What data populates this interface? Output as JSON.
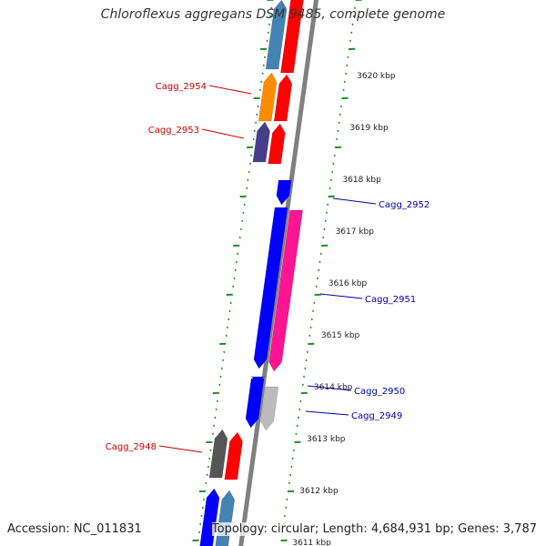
{
  "title": "Chloroflexus aggregans DSM 9485, complete genome",
  "footer": {
    "accession": "Accession: NC_011831",
    "summary": "Topology: circular; Length: 4,684,931 bp; Genes: 3,787"
  },
  "colors": {
    "backbone": "#808080",
    "ticks": "#228b22",
    "reverse_label": "#cc0000",
    "forward_label": "#0000aa"
  },
  "ruler": {
    "kbp_labels": [
      "3620 kbp",
      "3619 kbp",
      "3618 kbp",
      "3617 kbp",
      "3616 kbp",
      "3615 kbp",
      "3614 kbp",
      "3613 kbp",
      "3612 kbp",
      "3611 kbp"
    ]
  },
  "genes": {
    "reverse_strand": [
      {
        "label": "",
        "color": "#4682b4",
        "kind": "inner"
      },
      {
        "label": "",
        "color": "#ff0000",
        "kind": "outer"
      },
      {
        "label": "Cagg_2954",
        "color": "#ff8c00",
        "kind": "inner"
      },
      {
        "label": "",
        "color": "#ff0000",
        "kind": "outer"
      },
      {
        "label": "Cagg_2953",
        "color": "#483d8b",
        "kind": "inner"
      },
      {
        "label": "",
        "color": "#ff0000",
        "kind": "outer"
      },
      {
        "label": "Cagg_2948",
        "color": "#555555",
        "kind": "inner"
      },
      {
        "label": "",
        "color": "#ff0000",
        "kind": "outer"
      },
      {
        "label": "",
        "color": "#0000ff",
        "kind": "inner"
      },
      {
        "label": "",
        "color": "#4682b4",
        "kind": "outer"
      }
    ],
    "forward_strand": [
      {
        "label": "Cagg_2952",
        "color": "#0000ff",
        "kind": "inner"
      },
      {
        "label": "",
        "color": "#0000ff",
        "kind": "inner"
      },
      {
        "label": "Cagg_2951",
        "color": "#ff1493",
        "kind": "outer"
      },
      {
        "label": "",
        "color": "#0000ff",
        "kind": "inner"
      },
      {
        "label": "Cagg_2950",
        "color": "#0000ff",
        "kind": "inner"
      },
      {
        "label": "Cagg_2949",
        "color": "#bbbbbb",
        "kind": "outer"
      }
    ]
  }
}
